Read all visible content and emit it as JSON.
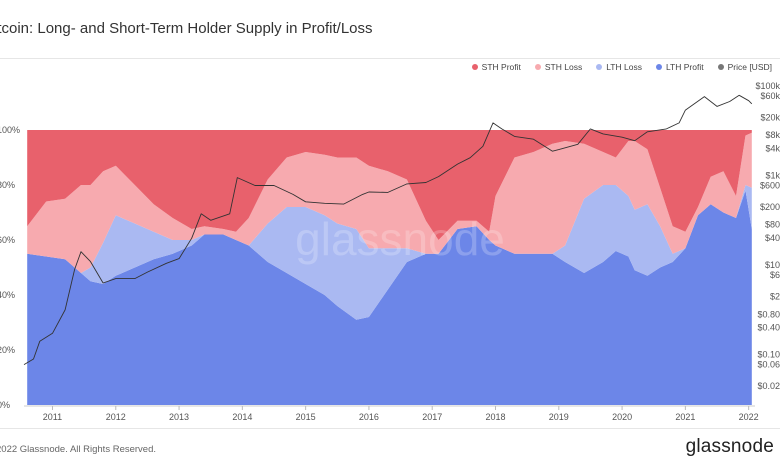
{
  "header": {
    "title": "itcoin: Long- and Short-Term Holder Supply in Profit/Loss"
  },
  "footer": {
    "copyright": "2022 Glassnode. All Rights Reserved.",
    "logo": "glassnode",
    "watermark": "glassnode"
  },
  "chart_data": {
    "type": "area",
    "legend": [
      {
        "name": "STH Profit",
        "color": "#e8616c"
      },
      {
        "name": "STH Loss",
        "color": "#f7aaaf"
      },
      {
        "name": "LTH Loss",
        "color": "#aab9f2"
      },
      {
        "name": "LTH Profit",
        "color": "#6c86e8"
      },
      {
        "name": "Price [USD]",
        "color": "#777777"
      }
    ],
    "x_ticks": [
      "2011",
      "2012",
      "2013",
      "2014",
      "2015",
      "2016",
      "2017",
      "2018",
      "2019",
      "2020",
      "2021",
      "2022"
    ],
    "y_left_ticks": [
      "100%",
      "80%",
      "60%",
      "40%",
      "20%",
      "0%"
    ],
    "y_right_ticks": [
      "$100k",
      "$60k",
      "$20k",
      "$8k",
      "$4k",
      "$1k",
      "$600",
      "$200",
      "$80",
      "$40",
      "$10",
      "$6",
      "$2",
      "$0.80",
      "$0.40",
      "$0.10",
      "$0.06",
      "$0.02"
    ],
    "x_range": [
      2010.55,
      2022.1
    ],
    "y_range": [
      0,
      100
    ],
    "price_range": [
      0.02,
      100000
    ],
    "price_scale": "log",
    "series": [
      {
        "name": "LTH Profit",
        "x": [
          2010.6,
          2010.9,
          2011.2,
          2011.45,
          2011.6,
          2011.8,
          2012.0,
          2012.3,
          2012.6,
          2012.9,
          2013.2,
          2013.4,
          2013.7,
          2013.9,
          2014.1,
          2014.4,
          2014.7,
          2015.0,
          2015.3,
          2015.5,
          2015.8,
          2016.0,
          2016.3,
          2016.6,
          2016.9,
          2017.1,
          2017.4,
          2017.7,
          2017.9,
          2018.0,
          2018.3,
          2018.6,
          2018.9,
          2019.1,
          2019.4,
          2019.7,
          2019.9,
          2020.1,
          2020.2,
          2020.4,
          2020.6,
          2020.8,
          2021.0,
          2021.2,
          2021.4,
          2021.6,
          2021.8,
          2021.95,
          2022.05
        ],
        "values": [
          55,
          54,
          53,
          48,
          45,
          44,
          47,
          50,
          53,
          55,
          58,
          62,
          62,
          60,
          58,
          52,
          48,
          44,
          40,
          36,
          31,
          32,
          42,
          52,
          55,
          55,
          64,
          65,
          60,
          58,
          55,
          55,
          55,
          52,
          48,
          52,
          56,
          54,
          49,
          47,
          50,
          52,
          57,
          69,
          73,
          70,
          68,
          78,
          64
        ]
      },
      {
        "name": "LTH Loss",
        "x": [
          2010.6,
          2010.9,
          2011.2,
          2011.45,
          2011.6,
          2011.8,
          2012.0,
          2012.3,
          2012.6,
          2012.9,
          2013.2,
          2013.4,
          2013.7,
          2013.9,
          2014.1,
          2014.4,
          2014.7,
          2015.0,
          2015.3,
          2015.5,
          2015.8,
          2016.0,
          2016.3,
          2016.6,
          2016.9,
          2017.1,
          2017.4,
          2017.7,
          2017.9,
          2018.0,
          2018.3,
          2018.6,
          2018.9,
          2019.1,
          2019.4,
          2019.7,
          2019.9,
          2020.1,
          2020.2,
          2020.4,
          2020.6,
          2020.8,
          2021.0,
          2021.2,
          2021.4,
          2021.6,
          2021.8,
          2021.95,
          2022.05
        ],
        "values": [
          0,
          0,
          0,
          0,
          5,
          15,
          22,
          16,
          10,
          5,
          2,
          0,
          0,
          0,
          0,
          14,
          24,
          28,
          29,
          30,
          33,
          25,
          15,
          5,
          0,
          0,
          0,
          0,
          0,
          0,
          0,
          0,
          0,
          6,
          27,
          28,
          24,
          22,
          22,
          26,
          15,
          3,
          0,
          0,
          0,
          0,
          0,
          2,
          15
        ]
      },
      {
        "name": "STH Loss",
        "x": [
          2010.6,
          2010.9,
          2011.2,
          2011.45,
          2011.6,
          2011.8,
          2012.0,
          2012.3,
          2012.6,
          2012.9,
          2013.2,
          2013.4,
          2013.7,
          2013.9,
          2014.1,
          2014.4,
          2014.7,
          2015.0,
          2015.3,
          2015.5,
          2015.8,
          2016.0,
          2016.3,
          2016.6,
          2016.9,
          2017.1,
          2017.4,
          2017.7,
          2017.9,
          2018.0,
          2018.3,
          2018.6,
          2018.9,
          2019.1,
          2019.4,
          2019.7,
          2019.9,
          2020.1,
          2020.2,
          2020.4,
          2020.6,
          2020.8,
          2021.0,
          2021.2,
          2021.4,
          2021.6,
          2021.8,
          2021.95,
          2022.05
        ],
        "values": [
          10,
          20,
          22,
          32,
          30,
          26,
          18,
          14,
          10,
          8,
          4,
          3,
          2,
          3,
          10,
          16,
          18,
          20,
          22,
          24,
          26,
          30,
          28,
          25,
          12,
          5,
          3,
          2,
          3,
          18,
          35,
          37,
          40,
          38,
          20,
          12,
          10,
          20,
          25,
          20,
          14,
          10,
          6,
          3,
          10,
          15,
          8,
          18,
          20
        ]
      },
      {
        "name": "STH Profit",
        "x": [
          2010.6,
          2010.9,
          2011.2,
          2011.45,
          2011.6,
          2011.8,
          2012.0,
          2012.3,
          2012.6,
          2012.9,
          2013.2,
          2013.4,
          2013.7,
          2013.9,
          2014.1,
          2014.4,
          2014.7,
          2015.0,
          2015.3,
          2015.5,
          2015.8,
          2016.0,
          2016.3,
          2016.6,
          2016.9,
          2017.1,
          2017.4,
          2017.7,
          2017.9,
          2018.0,
          2018.3,
          2018.6,
          2018.9,
          2019.1,
          2019.4,
          2019.7,
          2019.9,
          2020.1,
          2020.2,
          2020.4,
          2020.6,
          2020.8,
          2021.0,
          2021.2,
          2021.4,
          2021.6,
          2021.8,
          2021.95,
          2022.05
        ],
        "values": [
          35,
          26,
          25,
          20,
          20,
          15,
          13,
          20,
          27,
          32,
          36,
          35,
          36,
          37,
          32,
          18,
          10,
          8,
          9,
          10,
          10,
          13,
          15,
          18,
          33,
          40,
          33,
          33,
          37,
          24,
          10,
          8,
          5,
          4,
          5,
          8,
          10,
          4,
          4,
          7,
          21,
          35,
          37,
          28,
          17,
          15,
          24,
          2,
          1
        ]
      },
      {
        "name": "Price [USD]",
        "x": [
          2010.55,
          2010.7,
          2010.8,
          2011.0,
          2011.2,
          2011.35,
          2011.45,
          2011.6,
          2011.8,
          2012.0,
          2012.3,
          2012.5,
          2012.8,
          2013.0,
          2013.2,
          2013.35,
          2013.5,
          2013.8,
          2013.92,
          2014.0,
          2014.2,
          2014.5,
          2014.8,
          2015.0,
          2015.3,
          2015.6,
          2015.9,
          2016.0,
          2016.3,
          2016.6,
          2016.9,
          2017.1,
          2017.4,
          2017.6,
          2017.8,
          2017.96,
          2018.1,
          2018.3,
          2018.6,
          2018.9,
          2019.0,
          2019.3,
          2019.5,
          2019.7,
          2020.0,
          2020.2,
          2020.4,
          2020.7,
          2020.9,
          2021.0,
          2021.3,
          2021.5,
          2021.7,
          2021.85,
          2022.0,
          2022.05
        ],
        "values": [
          0.06,
          0.08,
          0.2,
          0.3,
          1,
          8,
          20,
          12,
          4,
          5,
          5,
          7,
          11,
          14,
          40,
          140,
          100,
          140,
          900,
          800,
          600,
          600,
          380,
          260,
          240,
          230,
          380,
          430,
          420,
          650,
          700,
          950,
          1800,
          2500,
          4500,
          15000,
          11000,
          7500,
          6500,
          3500,
          3800,
          5000,
          11000,
          8500,
          7200,
          6000,
          9500,
          11000,
          15000,
          29000,
          58000,
          35000,
          45000,
          62000,
          47000,
          40000
        ]
      }
    ]
  }
}
